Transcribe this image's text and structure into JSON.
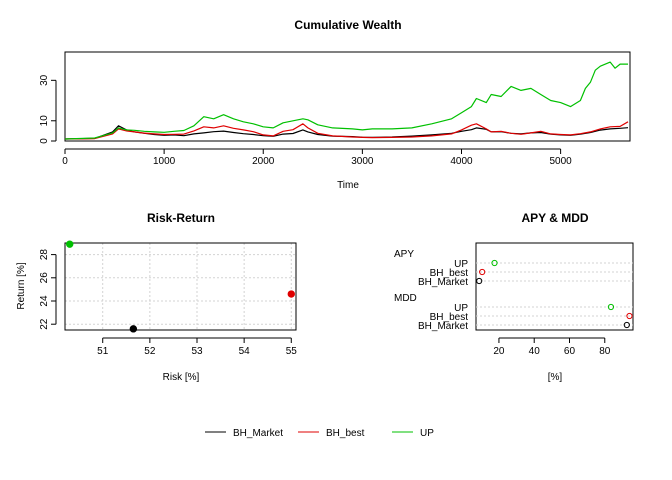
{
  "colors": {
    "BH_Market": "#000000",
    "BH_best": "#df0000",
    "UP": "#00c000"
  },
  "chart_data": [
    {
      "type": "line",
      "title": "Cumulative Wealth",
      "xlabel": "Time",
      "ylabel": "",
      "xlim": [
        0,
        5700
      ],
      "ylim": [
        0,
        44
      ],
      "xticks": [
        0,
        1000,
        2000,
        3000,
        4000,
        5000
      ],
      "yticks": [
        0,
        10,
        30
      ],
      "series": [
        {
          "name": "BH_Market",
          "x": [
            0,
            300,
            480,
            540,
            620,
            700,
            800,
            900,
            1000,
            1100,
            1200,
            1300,
            1400,
            1500,
            1600,
            1700,
            1800,
            1900,
            2000,
            2100,
            2200,
            2300,
            2400,
            2450,
            2550,
            2700,
            2900,
            3000,
            3100,
            3300,
            3500,
            3700,
            3900,
            4000,
            4100,
            4150,
            4250,
            4300,
            4400,
            4500,
            4600,
            4700,
            4800,
            4900,
            5000,
            5100,
            5200,
            5300,
            5400,
            5500,
            5600,
            5680
          ],
          "y": [
            1,
            1.3,
            4.5,
            7.5,
            5.5,
            4.5,
            3.8,
            3.2,
            2.8,
            3.0,
            2.6,
            3.5,
            4.0,
            4.6,
            4.9,
            4.2,
            3.6,
            3.2,
            2.6,
            2.3,
            3.4,
            3.7,
            5.5,
            4.5,
            3.2,
            2.4,
            2.2,
            1.9,
            1.8,
            2.0,
            2.4,
            3.0,
            3.8,
            4.8,
            5.6,
            6.5,
            5.8,
            4.5,
            4.6,
            3.8,
            3.5,
            4.0,
            4.2,
            3.4,
            3.0,
            2.8,
            3.4,
            4.2,
            5.4,
            6.0,
            6.3,
            6.6
          ]
        },
        {
          "name": "BH_best",
          "x": [
            0,
            300,
            480,
            540,
            620,
            700,
            800,
            900,
            1000,
            1100,
            1200,
            1300,
            1400,
            1500,
            1600,
            1700,
            1800,
            1900,
            2000,
            2100,
            2200,
            2300,
            2400,
            2450,
            2550,
            2700,
            2900,
            3000,
            3100,
            3300,
            3500,
            3700,
            3900,
            4000,
            4100,
            4150,
            4250,
            4300,
            4400,
            4500,
            4600,
            4700,
            4800,
            4900,
            5000,
            5100,
            5200,
            5300,
            5400,
            5500,
            5600,
            5680
          ],
          "y": [
            1,
            1.2,
            3.5,
            6.0,
            5.0,
            4.5,
            3.9,
            3.5,
            3.2,
            3.3,
            3.4,
            5.0,
            7.0,
            6.5,
            7.5,
            6.3,
            5.5,
            4.6,
            3.0,
            2.5,
            4.8,
            5.6,
            8.5,
            6.5,
            3.8,
            2.5,
            2.0,
            1.8,
            1.7,
            1.8,
            2.0,
            2.5,
            3.5,
            5.5,
            7.8,
            8.5,
            6.0,
            4.5,
            4.8,
            3.8,
            3.3,
            4.0,
            4.8,
            3.5,
            3.2,
            3.0,
            3.6,
            4.5,
            6.0,
            7.0,
            7.2,
            9.5
          ]
        },
        {
          "name": "UP",
          "x": [
            0,
            300,
            480,
            540,
            620,
            700,
            800,
            900,
            1000,
            1100,
            1200,
            1300,
            1400,
            1500,
            1600,
            1700,
            1800,
            1900,
            2000,
            2100,
            2200,
            2300,
            2400,
            2450,
            2550,
            2700,
            2900,
            3000,
            3100,
            3300,
            3500,
            3700,
            3900,
            4000,
            4100,
            4150,
            4250,
            4300,
            4400,
            4500,
            4600,
            4700,
            4800,
            4900,
            5000,
            5100,
            5200,
            5250,
            5300,
            5350,
            5400,
            5500,
            5550,
            5600,
            5680
          ],
          "y": [
            1,
            1.5,
            4.0,
            6.5,
            5.5,
            5.3,
            4.8,
            4.5,
            4.3,
            4.8,
            5.2,
            7.5,
            12,
            11,
            13,
            11,
            9.5,
            8.5,
            7.0,
            6.5,
            9,
            10,
            11,
            10.5,
            8,
            6.5,
            6,
            5.5,
            6,
            6,
            6.5,
            8.5,
            11,
            14,
            17,
            21,
            19,
            23,
            22,
            27,
            25,
            26,
            23,
            20,
            19,
            17,
            20,
            26,
            29,
            35,
            37,
            39,
            36,
            38,
            38
          ]
        }
      ]
    },
    {
      "type": "scatter",
      "title": "Risk-Return",
      "xlabel": "Risk [%]",
      "ylabel": "Return [%]",
      "xlim": [
        50.2,
        55.1
      ],
      "ylim": [
        21.5,
        29.0
      ],
      "xticks": [
        51,
        52,
        53,
        54,
        55
      ],
      "yticks": [
        22,
        24,
        26,
        28
      ],
      "grid": true,
      "points": [
        {
          "name": "BH_Market",
          "x": 51.65,
          "y": 21.6
        },
        {
          "name": "BH_best",
          "x": 55.0,
          "y": 24.6
        },
        {
          "name": "UP",
          "x": 50.3,
          "y": 28.9
        }
      ]
    },
    {
      "type": "dotchart",
      "title": "APY & MDD",
      "xlabel": "[%]",
      "xlim": [
        7,
        96
      ],
      "xticks": [
        20,
        40,
        60,
        80
      ],
      "groups": [
        {
          "label": "APY",
          "items": [
            {
              "name": "UP",
              "value": 17.5
            },
            {
              "name": "BH_best",
              "value": 10.5
            },
            {
              "name": "BH_Market",
              "value": 8.8
            }
          ]
        },
        {
          "label": "MDD",
          "items": [
            {
              "name": "UP",
              "value": 83.5
            },
            {
              "name": "BH_best",
              "value": 94.0
            },
            {
              "name": "BH_Market",
              "value": 92.5
            }
          ]
        }
      ]
    }
  ],
  "legend": {
    "placement": "bottom",
    "items": [
      "BH_Market",
      "BH_best",
      "UP"
    ]
  }
}
